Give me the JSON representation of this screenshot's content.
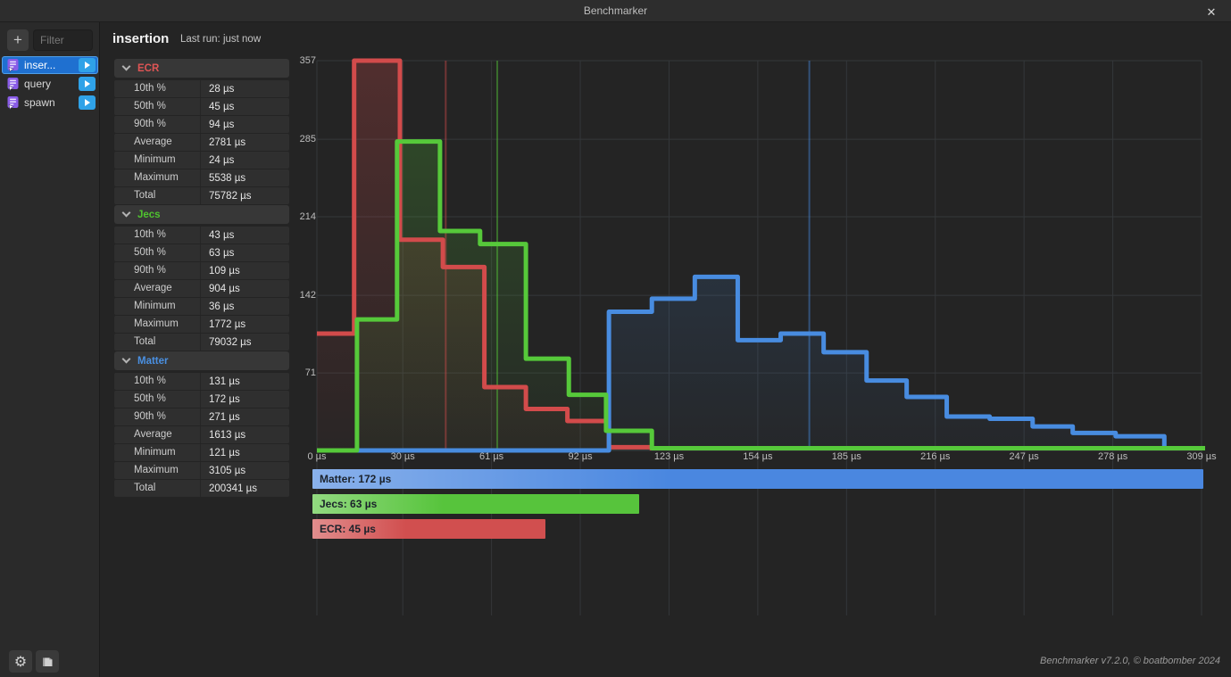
{
  "titlebar": {
    "title": "Benchmarker",
    "close_label": "✕"
  },
  "sidebar": {
    "add_button_label": "+",
    "filter_placeholder": "Filter",
    "items": [
      {
        "label": "inser...",
        "selected": true
      },
      {
        "label": "query",
        "selected": false
      },
      {
        "label": "spawn",
        "selected": false
      }
    ]
  },
  "header": {
    "title": "insertion",
    "last_run": "Last run: just now"
  },
  "stats_sections": [
    {
      "name": "ECR",
      "color": "#e05555",
      "rows": [
        {
          "label": "10th %",
          "value": "28 µs"
        },
        {
          "label": "50th %",
          "value": "45 µs"
        },
        {
          "label": "90th %",
          "value": "94 µs"
        },
        {
          "label": "Average",
          "value": "2781 µs"
        },
        {
          "label": "Minimum",
          "value": "24 µs"
        },
        {
          "label": "Maximum",
          "value": "5538 µs"
        },
        {
          "label": "Total",
          "value": "75782 µs"
        }
      ]
    },
    {
      "name": "Jecs",
      "color": "#4fc32f",
      "rows": [
        {
          "label": "10th %",
          "value": "43 µs"
        },
        {
          "label": "50th %",
          "value": "63 µs"
        },
        {
          "label": "90th %",
          "value": "109 µs"
        },
        {
          "label": "Average",
          "value": "904 µs"
        },
        {
          "label": "Minimum",
          "value": "36 µs"
        },
        {
          "label": "Maximum",
          "value": "1772 µs"
        },
        {
          "label": "Total",
          "value": "79032 µs"
        }
      ]
    },
    {
      "name": "Matter",
      "color": "#4a90e2",
      "rows": [
        {
          "label": "10th %",
          "value": "131 µs"
        },
        {
          "label": "50th %",
          "value": "172 µs"
        },
        {
          "label": "90th %",
          "value": "271 µs"
        },
        {
          "label": "Average",
          "value": "1613 µs"
        },
        {
          "label": "Minimum",
          "value": "121 µs"
        },
        {
          "label": "Maximum",
          "value": "3105 µs"
        },
        {
          "label": "Total",
          "value": "200341 µs"
        }
      ]
    }
  ],
  "chart_data": {
    "type": "step-histogram",
    "xlim": [
      0,
      309
    ],
    "ylim": [
      0,
      357
    ],
    "x_ticks": [
      {
        "value": 0,
        "label": "0 µs"
      },
      {
        "value": 30,
        "label": "30 µs"
      },
      {
        "value": 61,
        "label": "61 µs"
      },
      {
        "value": 92,
        "label": "92 µs"
      },
      {
        "value": 123,
        "label": "123 µs"
      },
      {
        "value": 154,
        "label": "154 µs"
      },
      {
        "value": 185,
        "label": "185 µs"
      },
      {
        "value": 216,
        "label": "216 µs"
      },
      {
        "value": 247,
        "label": "247 µs"
      },
      {
        "value": 278,
        "label": "278 µs"
      },
      {
        "value": 309,
        "label": "309 µs"
      }
    ],
    "y_ticks": [
      357,
      285,
      214,
      142,
      71
    ],
    "grid": true,
    "series": [
      {
        "name": "ECR",
        "color": "#d24b4b",
        "median_us": 45,
        "edges": [
          0,
          13,
          29,
          44,
          58.5,
          73,
          87.5,
          102,
          117
        ],
        "counts": [
          107,
          357,
          193,
          168,
          58,
          38,
          27,
          3
        ]
      },
      {
        "name": "Matter",
        "color": "#488ce0",
        "median_us": 172,
        "edges": [
          0,
          102,
          117,
          132,
          147,
          162,
          177,
          192,
          206,
          220,
          235,
          250,
          264,
          279,
          296,
          309
        ],
        "counts": [
          0,
          127,
          139,
          159,
          101,
          107,
          90,
          64,
          49,
          31,
          29,
          22,
          16,
          13,
          2
        ]
      },
      {
        "name": "Jecs",
        "color": "#56c93a",
        "median_us": 63,
        "edges": [
          0,
          14,
          28,
          43,
          57,
          73,
          88,
          101,
          117,
          309
        ],
        "counts": [
          0,
          120,
          283,
          201,
          189,
          84,
          51,
          18,
          2
        ]
      }
    ],
    "legend_bars": [
      {
        "name": "Matter",
        "label": "Matter: 172 µs",
        "value_us": 172,
        "color": "#4a87e0"
      },
      {
        "name": "Jecs",
        "label": "Jecs: 63 µs",
        "value_us": 63,
        "color": "#57c43c"
      },
      {
        "name": "ECR",
        "label": "ECR: 45 µs",
        "value_us": 45,
        "color": "#d14f4f"
      }
    ]
  },
  "footer": {
    "credit": "Benchmarker v7.2.0, © boatbomber 2024"
  }
}
